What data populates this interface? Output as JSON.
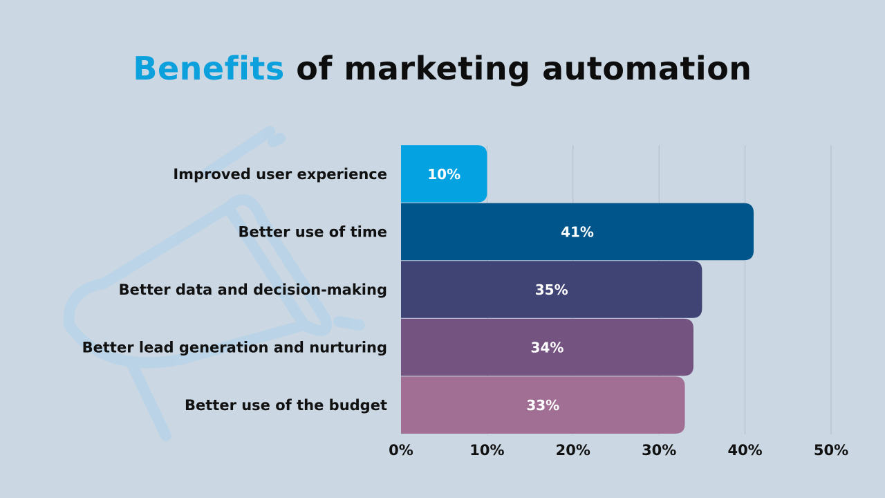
{
  "chart_data": {
    "type": "bar",
    "orientation": "horizontal",
    "title_accent": "Benefits",
    "title_rest": "of marketing automation",
    "categories": [
      "Improved user experience",
      "Better use of time",
      "Better data and decision-making",
      "Better lead generation and nurturing",
      "Better use of the budget"
    ],
    "values": [
      10,
      41,
      35,
      34,
      33
    ],
    "value_labels": [
      "10%",
      "41%",
      "35%",
      "34%",
      "33%"
    ],
    "colors": [
      "#04a2e0",
      "#00558a",
      "#3f4474",
      "#755381",
      "#a06f93"
    ],
    "xlim": [
      0,
      50
    ],
    "xticks": [
      0,
      10,
      20,
      30,
      40,
      50
    ],
    "xtick_labels": [
      "0%",
      "10%",
      "20%",
      "30%",
      "40%",
      "50%"
    ],
    "grid": true,
    "xlabel": "",
    "ylabel": ""
  }
}
